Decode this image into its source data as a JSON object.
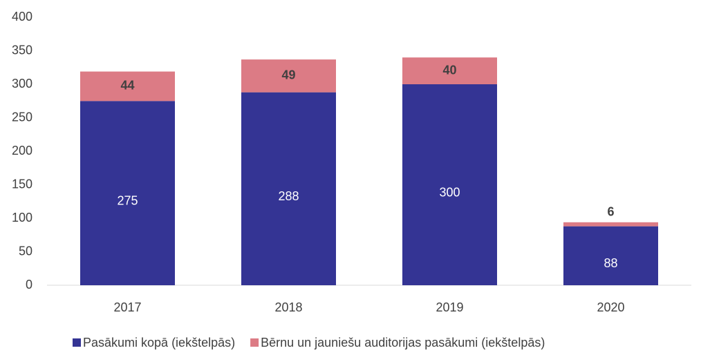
{
  "chart_data": {
    "type": "stacked_bar",
    "categories": [
      "2017",
      "2018",
      "2019",
      "2020"
    ],
    "series": [
      {
        "name": "Pasākumi kopā (iekštelpās)",
        "color": "#343494",
        "values": [
          275,
          288,
          300,
          88
        ]
      },
      {
        "name": "Bērnu un jauniešu auditorijas pasākumi (iekštelpās)",
        "color": "#dc7b85",
        "values": [
          44,
          49,
          40,
          6
        ]
      }
    ],
    "ylim": [
      0,
      400
    ],
    "yticks": [
      0,
      50,
      100,
      150,
      200,
      250,
      300,
      350,
      400
    ],
    "grid": false,
    "legend": "bottom"
  }
}
